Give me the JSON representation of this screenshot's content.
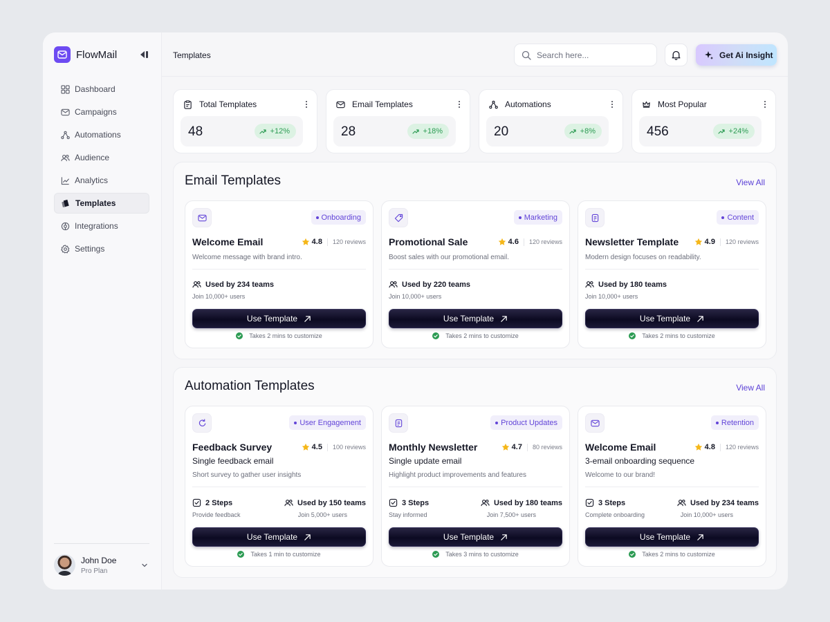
{
  "brand": {
    "name": "FlowMail"
  },
  "sidebar": {
    "items": [
      {
        "label": "Dashboard",
        "icon": "grid-icon",
        "active": false
      },
      {
        "label": "Campaigns",
        "icon": "mail-icon",
        "active": false
      },
      {
        "label": "Automations",
        "icon": "workflow-icon",
        "active": false
      },
      {
        "label": "Audience",
        "icon": "users-icon",
        "active": false
      },
      {
        "label": "Analytics",
        "icon": "chart-icon",
        "active": false
      },
      {
        "label": "Templates",
        "icon": "templates-icon",
        "active": true
      },
      {
        "label": "Integrations",
        "icon": "puzzle-icon",
        "active": false
      },
      {
        "label": "Settings",
        "icon": "gear-icon",
        "active": false
      }
    ],
    "user": {
      "name": "John Doe",
      "plan": "Pro Plan"
    }
  },
  "header": {
    "title": "Templates",
    "search_placeholder": "Search here...",
    "insight_label": "Get Ai Insight"
  },
  "stats": [
    {
      "label": "Total Templates",
      "value": "48",
      "change": "+12%",
      "icon": "clipboard-icon"
    },
    {
      "label": "Email Templates",
      "value": "28",
      "change": "+18%",
      "icon": "mail-icon"
    },
    {
      "label": "Automations",
      "value": "20",
      "change": "+8%",
      "icon": "workflow-icon"
    },
    {
      "label": "Most Popular",
      "value": "456",
      "change": "+24%",
      "icon": "crown-icon"
    }
  ],
  "email_section": {
    "title": "Email Templates",
    "view_all": "View All",
    "cards": [
      {
        "tag": "Onboarding",
        "title": "Welcome Email",
        "rating": "4.8",
        "reviews": "120 reviews",
        "desc": "Welcome message with brand intro.",
        "used": "Used by 234 teams",
        "join": "Join 10,000+ users",
        "button": "Use Template",
        "note": "Takes 2 mins to customize",
        "icon": "mail-icon"
      },
      {
        "tag": "Marketing",
        "title": "Promotional Sale",
        "rating": "4.6",
        "reviews": "120 reviews",
        "desc": "Boost sales with our promotional email.",
        "used": "Used by 220 teams",
        "join": "Join 10,000+ users",
        "button": "Use Template",
        "note": "Takes 2 mins to customize",
        "icon": "tag-icon"
      },
      {
        "tag": "Content",
        "title": "Newsletter Template",
        "rating": "4.9",
        "reviews": "120 reviews",
        "desc": "Modern design focuses on readability.",
        "used": "Used by 180 teams",
        "join": "Join 10,000+ users",
        "button": "Use Template",
        "note": "Takes 2 mins to customize",
        "icon": "newsletter-icon"
      }
    ]
  },
  "automation_section": {
    "title": "Automation Templates",
    "view_all": "View All",
    "cards": [
      {
        "tag": "User Engagement",
        "title": "Feedback Survey",
        "rating": "4.5",
        "reviews": "100 reviews",
        "sub": "Single feedback email",
        "desc": "Short survey to gather user insights",
        "steps": "2 Steps",
        "steps_sub": "Provide feedback",
        "used": "Used by 150 teams",
        "join": "Join 5,000+ users",
        "button": "Use Template",
        "note": "Takes 1 min to customize",
        "icon": "refresh-icon"
      },
      {
        "tag": "Product Updates",
        "title": "Monthly Newsletter",
        "rating": "4.7",
        "reviews": "80 reviews",
        "sub": "Single update email",
        "desc": "Highlight product improvements and features",
        "steps": "3 Steps",
        "steps_sub": "Stay informed",
        "used": "Used by 180 teams",
        "join": "Join 7,500+ users",
        "button": "Use Template",
        "note": "Takes 3 mins to customize",
        "icon": "newsletter-icon"
      },
      {
        "tag": "Retention",
        "title": "Welcome Email",
        "rating": "4.8",
        "reviews": "120 reviews",
        "sub": "3-email onboarding sequence",
        "desc": "Welcome to our brand!",
        "steps": "3 Steps",
        "steps_sub": "Complete onboarding",
        "used": "Used by 234 teams",
        "join": "Join 10,000+ users",
        "button": "Use Template",
        "note": "Takes 2 mins to customize",
        "icon": "mail-icon"
      }
    ]
  },
  "colors": {
    "accent": "#6d4bf2",
    "success": "#2c9b53",
    "button": "#0c0a22",
    "star": "#f5b71a"
  }
}
